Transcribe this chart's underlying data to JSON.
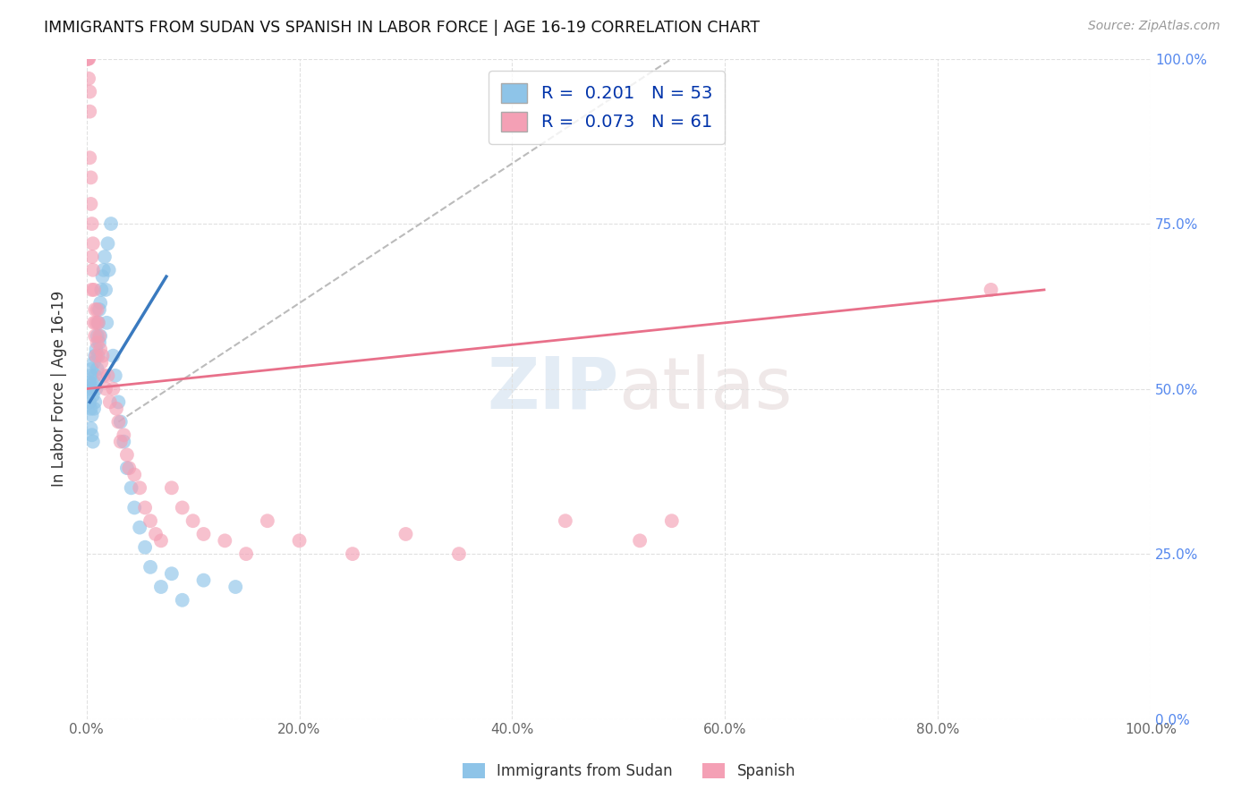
{
  "title": "IMMIGRANTS FROM SUDAN VS SPANISH IN LABOR FORCE | AGE 16-19 CORRELATION CHART",
  "source": "Source: ZipAtlas.com",
  "ylabel": "In Labor Force | Age 16-19",
  "xlim": [
    0.0,
    1.0
  ],
  "ylim": [
    0.0,
    1.0
  ],
  "legend_r1": "R =  0.201",
  "legend_n1": "N = 53",
  "legend_r2": "R =  0.073",
  "legend_n2": "N = 61",
  "color_blue": "#8ec4e8",
  "color_pink": "#f4a0b5",
  "color_blue_line": "#3a7abf",
  "color_pink_line": "#e8708a",
  "color_dashed_line": "#bbbbbb",
  "watermark_zip": "ZIP",
  "watermark_atlas": "atlas",
  "blue_scatter_x": [
    0.002,
    0.003,
    0.003,
    0.004,
    0.004,
    0.004,
    0.005,
    0.005,
    0.005,
    0.005,
    0.006,
    0.006,
    0.007,
    0.007,
    0.007,
    0.008,
    0.008,
    0.008,
    0.009,
    0.009,
    0.01,
    0.01,
    0.011,
    0.011,
    0.012,
    0.012,
    0.013,
    0.013,
    0.014,
    0.015,
    0.016,
    0.017,
    0.018,
    0.019,
    0.02,
    0.021,
    0.023,
    0.025,
    0.027,
    0.03,
    0.032,
    0.035,
    0.038,
    0.042,
    0.045,
    0.05,
    0.055,
    0.06,
    0.07,
    0.08,
    0.09,
    0.11,
    0.14
  ],
  "blue_scatter_y": [
    0.5,
    0.51,
    0.48,
    0.47,
    0.52,
    0.44,
    0.53,
    0.5,
    0.46,
    0.43,
    0.49,
    0.42,
    0.54,
    0.51,
    0.47,
    0.52,
    0.55,
    0.48,
    0.56,
    0.5,
    0.58,
    0.53,
    0.6,
    0.55,
    0.62,
    0.57,
    0.63,
    0.58,
    0.65,
    0.67,
    0.68,
    0.7,
    0.65,
    0.6,
    0.72,
    0.68,
    0.75,
    0.55,
    0.52,
    0.48,
    0.45,
    0.42,
    0.38,
    0.35,
    0.32,
    0.29,
    0.26,
    0.23,
    0.2,
    0.22,
    0.18,
    0.21,
    0.2
  ],
  "pink_scatter_x": [
    0.001,
    0.001,
    0.001,
    0.002,
    0.002,
    0.002,
    0.003,
    0.003,
    0.003,
    0.004,
    0.004,
    0.005,
    0.005,
    0.005,
    0.006,
    0.006,
    0.007,
    0.007,
    0.008,
    0.008,
    0.009,
    0.009,
    0.01,
    0.01,
    0.011,
    0.012,
    0.013,
    0.014,
    0.015,
    0.016,
    0.018,
    0.02,
    0.022,
    0.025,
    0.028,
    0.03,
    0.032,
    0.035,
    0.038,
    0.04,
    0.045,
    0.05,
    0.055,
    0.06,
    0.065,
    0.07,
    0.08,
    0.09,
    0.1,
    0.11,
    0.13,
    0.15,
    0.17,
    0.2,
    0.25,
    0.3,
    0.35,
    0.45,
    0.52,
    0.55,
    0.85
  ],
  "pink_scatter_y": [
    1.0,
    1.0,
    1.0,
    1.0,
    1.0,
    0.97,
    0.95,
    0.92,
    0.85,
    0.82,
    0.78,
    0.75,
    0.7,
    0.65,
    0.72,
    0.68,
    0.65,
    0.6,
    0.62,
    0.58,
    0.6,
    0.55,
    0.62,
    0.57,
    0.6,
    0.58,
    0.56,
    0.54,
    0.55,
    0.52,
    0.5,
    0.52,
    0.48,
    0.5,
    0.47,
    0.45,
    0.42,
    0.43,
    0.4,
    0.38,
    0.37,
    0.35,
    0.32,
    0.3,
    0.28,
    0.27,
    0.35,
    0.32,
    0.3,
    0.28,
    0.27,
    0.25,
    0.3,
    0.27,
    0.25,
    0.28,
    0.25,
    0.3,
    0.27,
    0.3,
    0.65
  ],
  "blue_line_x": [
    0.003,
    0.075
  ],
  "blue_line_y": [
    0.48,
    0.67
  ],
  "pink_line_x": [
    0.0,
    0.9
  ],
  "pink_line_y": [
    0.5,
    0.65
  ],
  "dashed_line_x": [
    0.03,
    0.55
  ],
  "dashed_line_y": [
    0.45,
    1.0
  ],
  "grid_color": "#e0e0e0"
}
